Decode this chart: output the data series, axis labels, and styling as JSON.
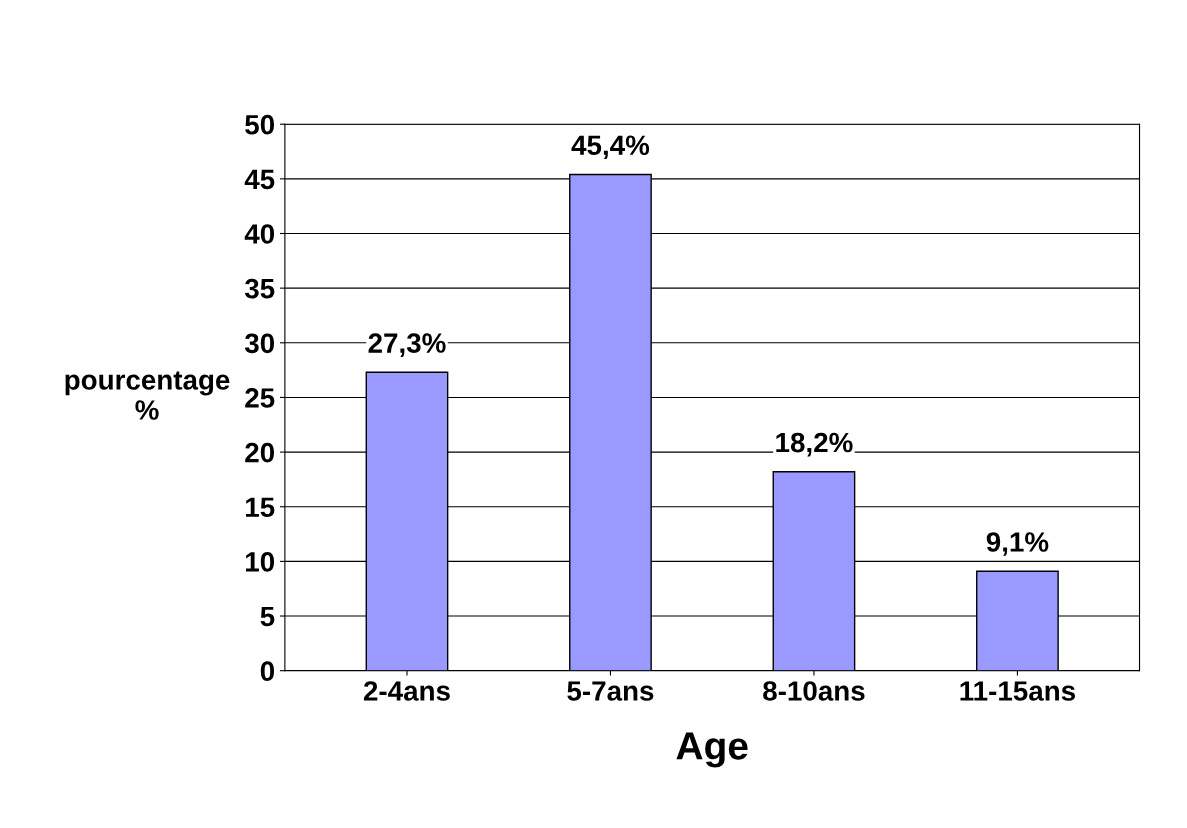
{
  "chart_data": {
    "type": "bar",
    "xlabel": "Age",
    "ylabel": "pourcentage\n%",
    "categories": [
      "2-4ans",
      "5-7ans",
      "8-10ans",
      "11-15ans"
    ],
    "values": [
      27.3,
      45.4,
      18.2,
      9.1
    ],
    "value_labels": [
      "27,3%",
      "45,4%",
      "18,2%",
      "9,1%"
    ],
    "color": "#9999ff",
    "ylim": [
      0,
      50
    ],
    "yticks": [
      0,
      5,
      10,
      15,
      20,
      25,
      30,
      35,
      40,
      45,
      50
    ],
    "grid": "y"
  }
}
